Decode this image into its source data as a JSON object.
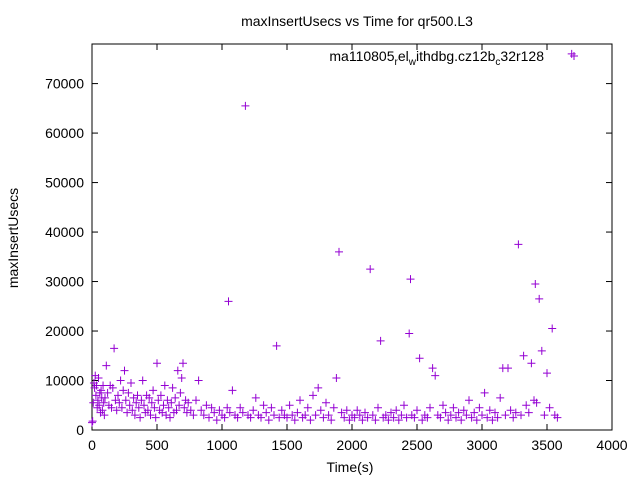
{
  "chart_data": {
    "type": "scatter",
    "title": "maxInsertUsecs vs Time for qr500.L3",
    "xlabel": "Time(s)",
    "ylabel": "maxInsertUsecs",
    "xlim": [
      0,
      4000
    ],
    "ylim": [
      0,
      78000
    ],
    "xticks": [
      0,
      500,
      1000,
      1500,
      2000,
      2500,
      3000,
      3500,
      4000
    ],
    "yticks": [
      0,
      10000,
      20000,
      30000,
      40000,
      50000,
      60000,
      70000
    ],
    "xtick_labels": [
      "0",
      "500",
      "1000",
      "1500",
      "2000",
      "2500",
      "3000",
      "3500",
      "4000"
    ],
    "ytick_labels": [
      "0",
      "10000",
      "20000",
      "30000",
      "40000",
      "50000",
      "60000",
      "70000"
    ],
    "grid": false,
    "legend_position": "top-right",
    "marker": "+",
    "series": [
      {
        "name_parts": [
          {
            "text": "ma110805",
            "sub": false
          },
          {
            "text": "r",
            "sub": true
          },
          {
            "text": "el",
            "sub": false
          },
          {
            "text": "w",
            "sub": true
          },
          {
            "text": "ithdbg.cz12b",
            "sub": false
          },
          {
            "text": "c",
            "sub": true
          },
          {
            "text": "32r128",
            "sub": false
          }
        ],
        "color": "#9400d3",
        "points": [
          [
            0,
            1500
          ],
          [
            5,
            1800
          ],
          [
            10,
            5500
          ],
          [
            15,
            9500
          ],
          [
            20,
            8500
          ],
          [
            25,
            11000
          ],
          [
            30,
            7000
          ],
          [
            35,
            9000
          ],
          [
            40,
            4500
          ],
          [
            45,
            6000
          ],
          [
            50,
            10500
          ],
          [
            55,
            5000
          ],
          [
            60,
            7500
          ],
          [
            65,
            3500
          ],
          [
            70,
            8000
          ],
          [
            75,
            6500
          ],
          [
            80,
            4000
          ],
          [
            85,
            9000
          ],
          [
            90,
            5500
          ],
          [
            95,
            3000
          ],
          [
            100,
            6500
          ],
          [
            110,
            13000
          ],
          [
            120,
            7500
          ],
          [
            130,
            5000
          ],
          [
            140,
            9000
          ],
          [
            150,
            4500
          ],
          [
            160,
            8500
          ],
          [
            170,
            16500
          ],
          [
            180,
            6000
          ],
          [
            190,
            4000
          ],
          [
            200,
            7000
          ],
          [
            210,
            5500
          ],
          [
            220,
            10000
          ],
          [
            230,
            4500
          ],
          [
            240,
            8000
          ],
          [
            250,
            12000
          ],
          [
            260,
            6000
          ],
          [
            270,
            3500
          ],
          [
            280,
            7500
          ],
          [
            290,
            5000
          ],
          [
            300,
            9500
          ],
          [
            310,
            4000
          ],
          [
            320,
            6500
          ],
          [
            330,
            3000
          ],
          [
            340,
            5500
          ],
          [
            350,
            7000
          ],
          [
            360,
            4500
          ],
          [
            370,
            2500
          ],
          [
            380,
            6000
          ],
          [
            390,
            10000
          ],
          [
            400,
            5000
          ],
          [
            410,
            3500
          ],
          [
            420,
            7000
          ],
          [
            430,
            4000
          ],
          [
            440,
            6500
          ],
          [
            450,
            3000
          ],
          [
            460,
            5500
          ],
          [
            470,
            8000
          ],
          [
            480,
            4500
          ],
          [
            490,
            2500
          ],
          [
            500,
            13500
          ],
          [
            510,
            6000
          ],
          [
            520,
            4000
          ],
          [
            530,
            7000
          ],
          [
            540,
            3500
          ],
          [
            550,
            5000
          ],
          [
            560,
            9000
          ],
          [
            570,
            3000
          ],
          [
            580,
            6000
          ],
          [
            590,
            4500
          ],
          [
            600,
            2500
          ],
          [
            610,
            5500
          ],
          [
            620,
            8500
          ],
          [
            630,
            3500
          ],
          [
            640,
            6500
          ],
          [
            650,
            4000
          ],
          [
            660,
            12000
          ],
          [
            670,
            5000
          ],
          [
            680,
            7500
          ],
          [
            690,
            10500
          ],
          [
            700,
            13500
          ],
          [
            710,
            4500
          ],
          [
            720,
            6000
          ],
          [
            730,
            3500
          ],
          [
            740,
            5500
          ],
          [
            760,
            4000
          ],
          [
            780,
            3000
          ],
          [
            800,
            6000
          ],
          [
            820,
            10000
          ],
          [
            840,
            4000
          ],
          [
            860,
            3000
          ],
          [
            880,
            5000
          ],
          [
            900,
            2500
          ],
          [
            920,
            4500
          ],
          [
            940,
            3500
          ],
          [
            960,
            2000
          ],
          [
            980,
            4000
          ],
          [
            1000,
            3000
          ],
          [
            1020,
            2500
          ],
          [
            1040,
            4500
          ],
          [
            1050,
            26000
          ],
          [
            1060,
            3500
          ],
          [
            1080,
            8000
          ],
          [
            1100,
            3000
          ],
          [
            1120,
            2500
          ],
          [
            1140,
            4500
          ],
          [
            1160,
            3500
          ],
          [
            1180,
            65500
          ],
          [
            1200,
            3000
          ],
          [
            1220,
            2500
          ],
          [
            1240,
            4000
          ],
          [
            1260,
            6500
          ],
          [
            1280,
            3000
          ],
          [
            1300,
            2500
          ],
          [
            1320,
            5000
          ],
          [
            1340,
            3500
          ],
          [
            1360,
            2000
          ],
          [
            1380,
            4500
          ],
          [
            1400,
            3000
          ],
          [
            1420,
            17000
          ],
          [
            1440,
            2500
          ],
          [
            1460,
            4000
          ],
          [
            1480,
            3000
          ],
          [
            1500,
            2500
          ],
          [
            1520,
            5000
          ],
          [
            1540,
            3000
          ],
          [
            1560,
            2000
          ],
          [
            1580,
            3500
          ],
          [
            1600,
            6000
          ],
          [
            1620,
            2500
          ],
          [
            1640,
            3000
          ],
          [
            1660,
            4500
          ],
          [
            1680,
            2000
          ],
          [
            1700,
            7000
          ],
          [
            1720,
            3000
          ],
          [
            1740,
            8500
          ],
          [
            1760,
            4000
          ],
          [
            1780,
            2500
          ],
          [
            1800,
            5500
          ],
          [
            1820,
            3000
          ],
          [
            1840,
            2000
          ],
          [
            1860,
            4500
          ],
          [
            1880,
            10500
          ],
          [
            1900,
            36000
          ],
          [
            1920,
            3500
          ],
          [
            1940,
            2500
          ],
          [
            1960,
            4000
          ],
          [
            1980,
            2000
          ],
          [
            2000,
            3000
          ],
          [
            2020,
            2500
          ],
          [
            2040,
            4000
          ],
          [
            2060,
            3000
          ],
          [
            2080,
            2000
          ],
          [
            2100,
            3500
          ],
          [
            2120,
            2500
          ],
          [
            2140,
            32500
          ],
          [
            2160,
            3000
          ],
          [
            2180,
            2000
          ],
          [
            2200,
            4500
          ],
          [
            2220,
            18000
          ],
          [
            2240,
            2500
          ],
          [
            2260,
            3000
          ],
          [
            2280,
            2000
          ],
          [
            2300,
            3500
          ],
          [
            2320,
            2500
          ],
          [
            2340,
            4000
          ],
          [
            2360,
            2000
          ],
          [
            2380,
            3000
          ],
          [
            2400,
            5000
          ],
          [
            2420,
            2500
          ],
          [
            2440,
            19500
          ],
          [
            2450,
            30500
          ],
          [
            2460,
            3000
          ],
          [
            2480,
            2500
          ],
          [
            2500,
            4000
          ],
          [
            2520,
            14500
          ],
          [
            2540,
            2000
          ],
          [
            2560,
            3000
          ],
          [
            2580,
            2500
          ],
          [
            2600,
            4500
          ],
          [
            2620,
            12500
          ],
          [
            2640,
            11000
          ],
          [
            2660,
            3000
          ],
          [
            2680,
            2500
          ],
          [
            2700,
            5000
          ],
          [
            2720,
            3500
          ],
          [
            2740,
            2000
          ],
          [
            2760,
            3000
          ],
          [
            2780,
            4500
          ],
          [
            2800,
            2500
          ],
          [
            2820,
            3500
          ],
          [
            2840,
            2000
          ],
          [
            2860,
            4000
          ],
          [
            2880,
            3000
          ],
          [
            2900,
            6000
          ],
          [
            2920,
            2500
          ],
          [
            2940,
            3500
          ],
          [
            2960,
            2000
          ],
          [
            2980,
            4500
          ],
          [
            3000,
            3000
          ],
          [
            3020,
            7500
          ],
          [
            3040,
            2500
          ],
          [
            3060,
            4000
          ],
          [
            3080,
            2000
          ],
          [
            3100,
            3500
          ],
          [
            3120,
            2500
          ],
          [
            3140,
            6500
          ],
          [
            3160,
            12500
          ],
          [
            3180,
            3000
          ],
          [
            3200,
            12500
          ],
          [
            3220,
            4000
          ],
          [
            3240,
            2500
          ],
          [
            3260,
            3500
          ],
          [
            3280,
            37500
          ],
          [
            3300,
            3000
          ],
          [
            3320,
            15000
          ],
          [
            3340,
            5000
          ],
          [
            3360,
            3500
          ],
          [
            3380,
            13500
          ],
          [
            3400,
            6000
          ],
          [
            3410,
            29500
          ],
          [
            3420,
            5500
          ],
          [
            3440,
            26500
          ],
          [
            3460,
            16000
          ],
          [
            3480,
            3000
          ],
          [
            3500,
            11500
          ],
          [
            3520,
            4500
          ],
          [
            3540,
            20500
          ],
          [
            3560,
            3000
          ],
          [
            3580,
            2500
          ],
          [
            3690,
            76000
          ]
        ]
      }
    ]
  }
}
